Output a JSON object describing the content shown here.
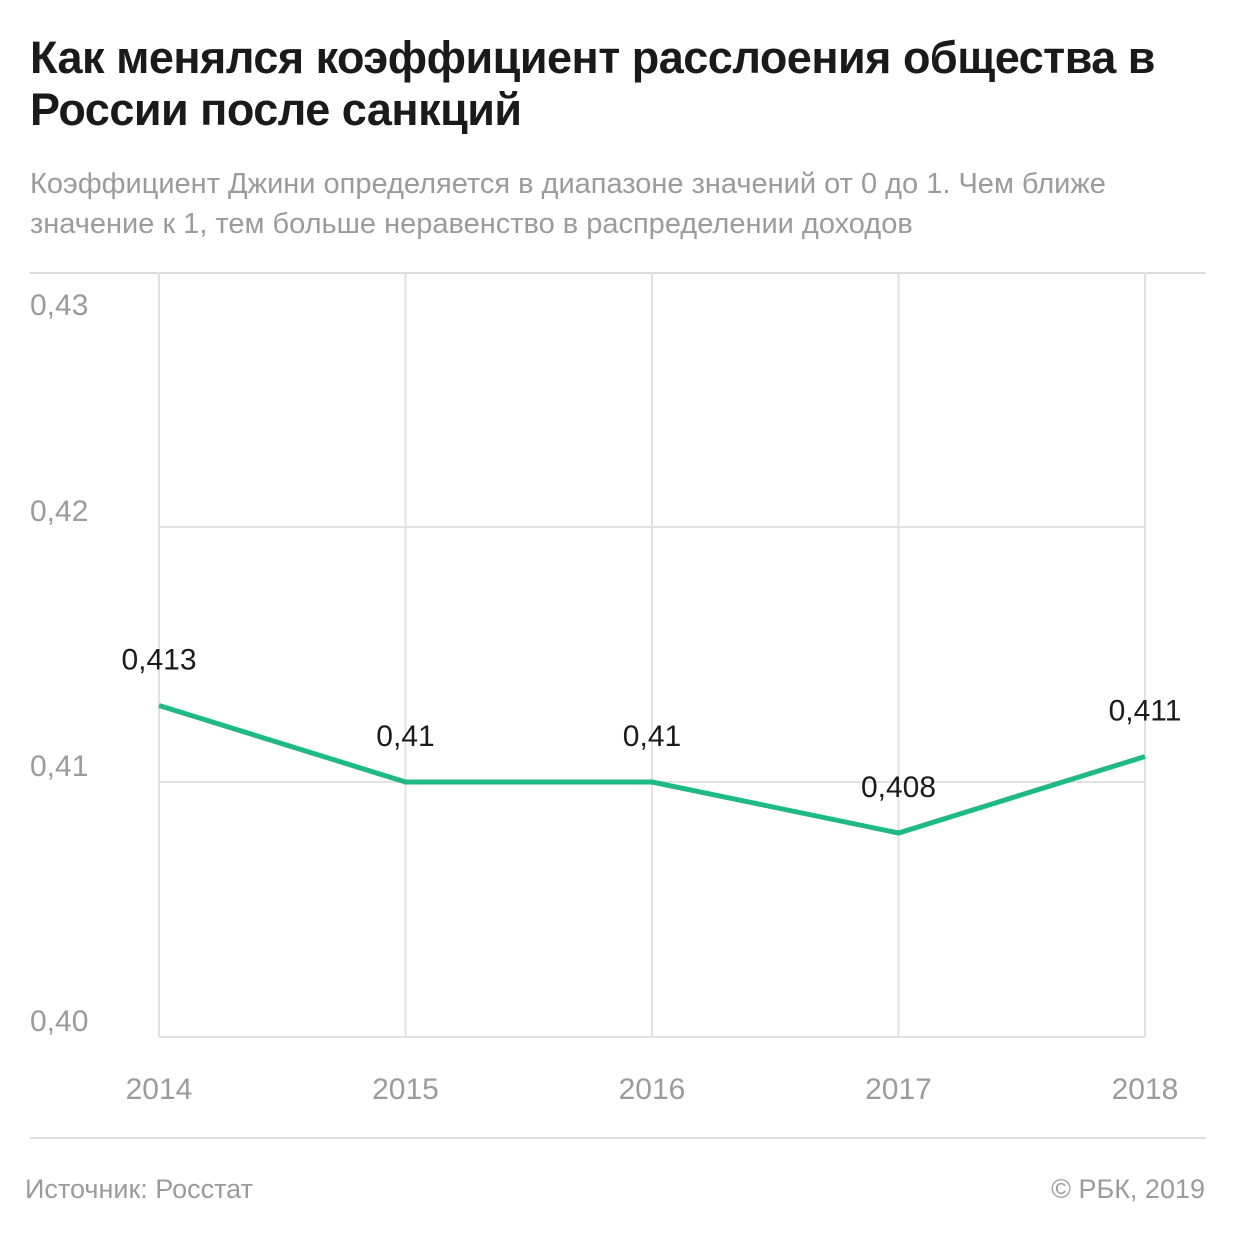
{
  "header": {
    "title": "Как менялся коэффициент расслоения общества в России после санкций",
    "subtitle": "Коэффициент Джини определяется в диапазоне значений от 0 до 1. Чем ближе значение к 1, тем больше неравенство в распределении доходов"
  },
  "footer": {
    "source": "Источник: Росстат",
    "copyright": "© РБК, 2019"
  },
  "colors": {
    "line": "#1fb985",
    "grid": "#e2e2e2",
    "tick": "#9b9b9b",
    "label": "#1a1a1a"
  },
  "chart_data": {
    "type": "line",
    "categories": [
      "2014",
      "2015",
      "2016",
      "2017",
      "2018"
    ],
    "series": [
      {
        "values": [
          0.413,
          0.41,
          0.41,
          0.408,
          0.411
        ],
        "labels": [
          "0,413",
          "0,41",
          "0,41",
          "0,408",
          "0,411"
        ]
      }
    ],
    "yticks": [
      0.4,
      0.41,
      0.42,
      0.43
    ],
    "ytick_labels": [
      "0,40",
      "0,41",
      "0,42",
      "0,43"
    ],
    "ylim": [
      0.4,
      0.43
    ],
    "grid": true,
    "legend": "none"
  }
}
